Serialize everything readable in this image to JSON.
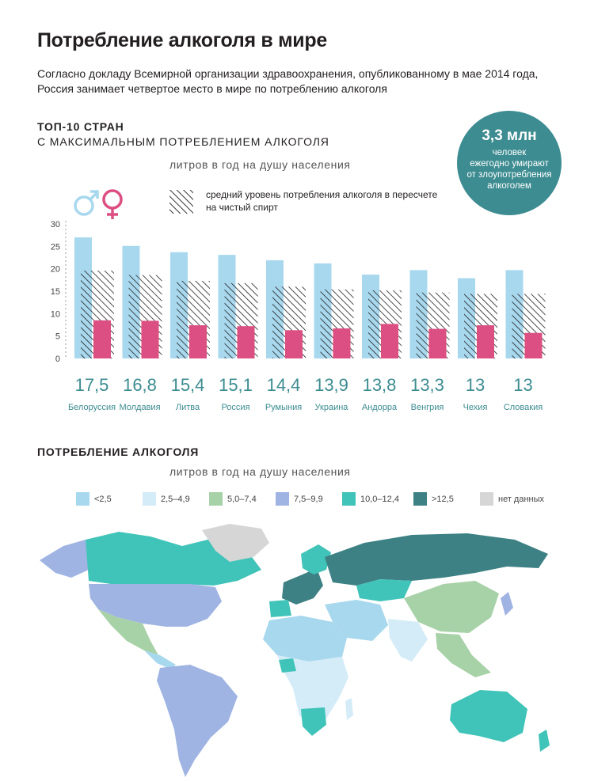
{
  "title": "Потребление алкоголя в мире",
  "subtitle": "Согласно докладу Всемирной организации здравоохранения, опубликованному в мае 2014 года, Россия занимает четвертое место в мире по потреблению алкоголя",
  "top10": {
    "heading": "ТОП-10 СТРАН",
    "subheading": "С МАКСИМАЛЬНЫМ ПОТРЕБЛЕНИЕМ АЛКОГОЛЯ",
    "units": "литров в год на душу населения",
    "legend_note_line1": "средний уровень потребления алкоголя в пересчете",
    "legend_note_line2": "на чистый спирт"
  },
  "callout": {
    "big": "3,3 млн",
    "line1": "человек",
    "line2": "ежегодно умирают",
    "line3": "от злоупотребления",
    "line4": "алкоголем"
  },
  "chart_data": {
    "type": "bar",
    "categories": [
      "Белоруссия",
      "Молдавия",
      "Литва",
      "Россия",
      "Румыния",
      "Украина",
      "Андорра",
      "Венгрия",
      "Чехия",
      "Словакия"
    ],
    "value_labels": [
      "17,5",
      "16,8",
      "15,4",
      "15,1",
      "14,4",
      "13,9",
      "13,8",
      "13,3",
      "13",
      "13"
    ],
    "series": [
      {
        "name": "male",
        "values": [
          27.0,
          25.1,
          23.7,
          23.1,
          21.9,
          21.2,
          18.7,
          19.7,
          17.9,
          19.7
        ]
      },
      {
        "name": "средний уровень потребления алкоголя в пересчете на чистый спирт",
        "values": [
          19.6,
          18.6,
          17.3,
          16.8,
          16.0,
          15.4,
          15.2,
          14.7,
          14.4,
          14.4
        ]
      },
      {
        "name": "female",
        "values": [
          8.5,
          8.4,
          7.4,
          7.2,
          6.3,
          6.7,
          7.7,
          6.6,
          7.4,
          5.7
        ]
      }
    ],
    "ylim": [
      0,
      30
    ],
    "yticks": [
      "0",
      "5",
      "10",
      "15",
      "20",
      "25",
      "30"
    ],
    "colors": {
      "male": "#a8d8ee",
      "female": "#dc4f82",
      "hatch": "#231f20",
      "label": "#3d8c91"
    }
  },
  "map_section": {
    "heading": "ПОТРЕБЛЕНИЕ АЛКОГОЛЯ",
    "units": "литров в год на душу населения",
    "legend": [
      {
        "label": "<2,5",
        "color": "#a8d8ee"
      },
      {
        "label": "2,5–4,9",
        "color": "#d4ecf7"
      },
      {
        "label": "5,0–7,4",
        "color": "#a7d1a7"
      },
      {
        "label": "7,5–9,9",
        "color": "#9fb4e3"
      },
      {
        "label": "10,0–12,4",
        "color": "#40c3b8"
      },
      {
        "label": ">12,5",
        "color": "#3d8185"
      },
      {
        "label": "нет данных",
        "color": "#d6d6d6"
      }
    ]
  }
}
